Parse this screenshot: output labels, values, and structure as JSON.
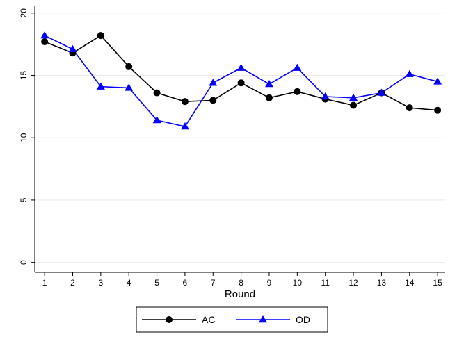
{
  "chart_data": {
    "type": "line",
    "x_label": "Round",
    "x": [
      1,
      2,
      3,
      4,
      5,
      6,
      7,
      8,
      9,
      10,
      11,
      12,
      13,
      14,
      15
    ],
    "series": [
      {
        "name": "AC",
        "color": "#000000",
        "marker": "circle",
        "values": [
          17.7,
          16.8,
          18.2,
          15.7,
          13.6,
          12.9,
          13.0,
          14.4,
          13.2,
          13.7,
          13.1,
          12.6,
          13.6,
          12.4,
          12.2
        ]
      },
      {
        "name": "OD",
        "color": "#0000ff",
        "marker": "triangle",
        "values": [
          18.2,
          17.1,
          14.1,
          14.0,
          11.4,
          10.9,
          14.4,
          15.6,
          14.3,
          15.6,
          13.3,
          13.2,
          13.6,
          15.1,
          14.5
        ]
      }
    ],
    "xlim": [
      0.65,
      15.27
    ],
    "xticks": [
      1,
      2,
      3,
      4,
      5,
      6,
      7,
      8,
      9,
      10,
      11,
      12,
      13,
      14,
      15
    ],
    "ylim": [
      -0.8,
      20.6
    ],
    "yticks": [
      0,
      5,
      10,
      15,
      20
    ],
    "grid": true,
    "legend": "bottom"
  }
}
